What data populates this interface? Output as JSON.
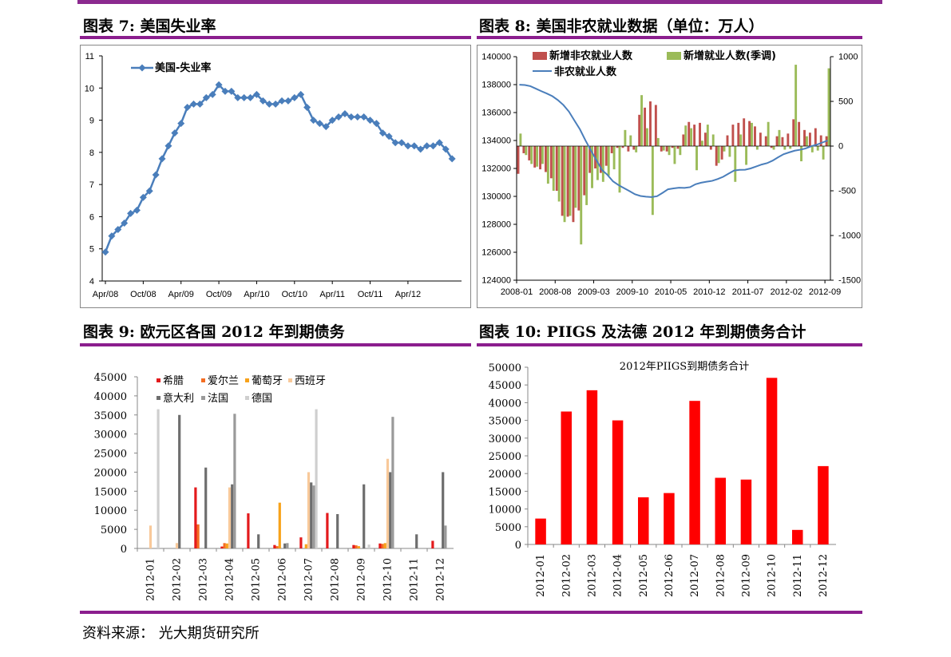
{
  "panels": [
    {
      "title": "图表 7:  美国失业率"
    },
    {
      "title": "图表 8:  美国非农就业数据（单位：万人）"
    },
    {
      "title": "图表 9:  欧元区各国 2012 年到期债务"
    },
    {
      "title": "图表 10:  PIIGS 及法德 2012 年到期债务合计"
    }
  ],
  "source": "资料来源：  光大期货研究所",
  "colors": {
    "purple": "#8b1e8e",
    "blue": "#4a7ebb",
    "red_bar": "#c0504d",
    "green_bar": "#9bbb59",
    "red": "#ff0000"
  },
  "chart_data": [
    {
      "id": "unemployment",
      "type": "line",
      "series": [
        {
          "name": "美国-失业率",
          "color": "#4a7ebb",
          "marker": "diamond"
        }
      ],
      "x_start": "2008-04",
      "x_ticks": [
        "Apr/08",
        "Oct/08",
        "Apr/09",
        "Oct/09",
        "Apr/10",
        "Oct/10",
        "Apr/11",
        "Oct/11",
        "Apr/12"
      ],
      "ylim": [
        4,
        11
      ],
      "y_ticks": [
        4,
        5,
        6,
        7,
        8,
        9,
        10,
        11
      ],
      "values": [
        4.9,
        5.4,
        5.6,
        5.8,
        6.1,
        6.2,
        6.6,
        6.8,
        7.3,
        7.8,
        8.2,
        8.6,
        8.9,
        9.4,
        9.5,
        9.5,
        9.7,
        9.8,
        10.1,
        9.9,
        9.9,
        9.7,
        9.7,
        9.7,
        9.8,
        9.6,
        9.5,
        9.5,
        9.6,
        9.6,
        9.7,
        9.8,
        9.4,
        9.0,
        8.9,
        8.8,
        9.0,
        9.1,
        9.2,
        9.1,
        9.1,
        9.1,
        9.0,
        8.9,
        8.6,
        8.5,
        8.3,
        8.3,
        8.2,
        8.2,
        8.1,
        8.2,
        8.2,
        8.3,
        8.1,
        7.8
      ]
    },
    {
      "id": "nonfarm",
      "type": "bar+line",
      "legend": [
        "新增非农就业人数",
        "新增就业人数(季调)",
        "非农就业人数"
      ],
      "x_ticks": [
        "2008-01",
        "2008-08",
        "2009-03",
        "2009-10",
        "2010-05",
        "2010-12",
        "2011-07",
        "2012-02",
        "2012-09"
      ],
      "left_ylim": [
        124000,
        140000
      ],
      "left_ticks": [
        124000,
        126000,
        128000,
        130000,
        132000,
        134000,
        136000,
        138000,
        140000
      ],
      "right_ylim": [
        -1500,
        1000
      ],
      "right_ticks": [
        -1500,
        -1000,
        -500,
        0,
        500,
        1000
      ],
      "months": 57,
      "employment": [
        137996,
        137970,
        137890,
        137710,
        137530,
        137360,
        137170,
        136890,
        136540,
        136070,
        135430,
        134800,
        134010,
        133290,
        132590,
        131890,
        131540,
        131080,
        130810,
        130590,
        130380,
        130150,
        130030,
        129980,
        129950,
        130010,
        130250,
        130510,
        130570,
        130620,
        130610,
        130660,
        130870,
        130980,
        131050,
        131110,
        131240,
        131400,
        131630,
        131850,
        131900,
        131910,
        132000,
        132140,
        132280,
        132380,
        132560,
        132800,
        133020,
        133150,
        133270,
        133340,
        133430,
        133590,
        133700,
        133850,
        134000
      ],
      "nsa_change": [
        -310,
        -80,
        -160,
        -240,
        -260,
        -290,
        -360,
        -500,
        -780,
        -790,
        -850,
        -720,
        -550,
        -300,
        -250,
        -300,
        -220,
        -80,
        -20,
        -20,
        -60,
        -40,
        350,
        430,
        500,
        460,
        -60,
        -60,
        -20,
        -30,
        130,
        270,
        240,
        260,
        150,
        -40,
        -220,
        -150,
        120,
        240,
        260,
        310,
        280,
        220,
        150,
        110,
        -20,
        110,
        100,
        140,
        300,
        270,
        180,
        150,
        200,
        120,
        110
      ],
      "sa_change": [
        140,
        -100,
        -200,
        -230,
        -200,
        -420,
        -500,
        -620,
        -850,
        -780,
        -690,
        -1100,
        -660,
        -470,
        -380,
        -400,
        -330,
        -260,
        -520,
        180,
        120,
        -70,
        570,
        200,
        -770,
        90,
        -50,
        -100,
        -200,
        -100,
        230,
        200,
        -270,
        60,
        240,
        130,
        -190,
        -60,
        -120,
        -400,
        130,
        -210,
        260,
        -40,
        0,
        270,
        -40,
        180,
        -40,
        -30,
        910,
        -170,
        110,
        -70,
        -50,
        -150,
        870
      ]
    },
    {
      "id": "euro_debt",
      "type": "bar",
      "categories": [
        "2012-01",
        "2012-02",
        "2012-03",
        "2012-04",
        "2012-05",
        "2012-06",
        "2012-07",
        "2012-08",
        "2012-09",
        "2012-10",
        "2012-11",
        "2012-12"
      ],
      "ylim": [
        0,
        45000
      ],
      "y_ticks": [
        0,
        5000,
        10000,
        15000,
        20000,
        25000,
        30000,
        35000,
        40000,
        45000
      ],
      "series": [
        {
          "name": "希腊",
          "color": "#e31a1c",
          "values": [
            0,
            0,
            16000,
            500,
            9200,
            900,
            2900,
            9300,
            900,
            1300,
            0,
            2000
          ]
        },
        {
          "name": "爱尔兰",
          "color": "#f46d22",
          "values": [
            0,
            0,
            6300,
            1400,
            0,
            600,
            0,
            0,
            800,
            1200,
            0,
            0
          ]
        },
        {
          "name": "葡萄牙",
          "color": "#f7a21a",
          "values": [
            0,
            0,
            0,
            1300,
            0,
            12000,
            1100,
            0,
            600,
            1400,
            0,
            0
          ]
        },
        {
          "name": "西班牙",
          "color": "#f8c99a",
          "values": [
            6000,
            1400,
            0,
            16000,
            0,
            0,
            20000,
            0,
            0,
            23500,
            0,
            0
          ]
        },
        {
          "name": "意大利",
          "color": "#6e6e6e",
          "values": [
            0,
            35000,
            21200,
            16800,
            3700,
            1300,
            17300,
            9000,
            16800,
            20000,
            3700,
            20000
          ]
        },
        {
          "name": "法国",
          "color": "#9a9a9a",
          "values": [
            0,
            0,
            0,
            35300,
            0,
            1400,
            16500,
            0,
            0,
            34500,
            0,
            6000
          ]
        },
        {
          "name": "德国",
          "color": "#cfcfcf",
          "values": [
            36500,
            0,
            0,
            0,
            0,
            0,
            36500,
            0,
            1000,
            0,
            0,
            0
          ]
        }
      ]
    },
    {
      "id": "piigs_total",
      "type": "bar",
      "title": "2012年PIIGS到期债务合计",
      "categories": [
        "2012-01",
        "2012-02",
        "2012-03",
        "2012-04",
        "2012-05",
        "2012-06",
        "2012-07",
        "2012-08",
        "2012-09",
        "2012-10",
        "2012-11",
        "2012-12"
      ],
      "values": [
        7300,
        37500,
        43500,
        35000,
        13300,
        14500,
        40500,
        18800,
        18300,
        47000,
        4100,
        22100
      ],
      "ylim": [
        0,
        50000
      ],
      "y_ticks": [
        0,
        5000,
        10000,
        15000,
        20000,
        25000,
        30000,
        35000,
        40000,
        45000,
        50000
      ],
      "color": "#ff0000"
    }
  ]
}
